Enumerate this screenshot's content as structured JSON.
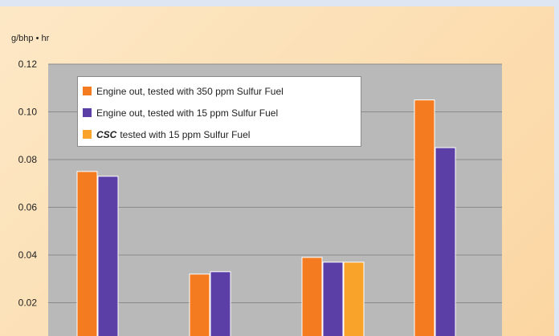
{
  "colors": {
    "background": "#fbdcae",
    "plot_area": "#b9b9b9",
    "grid": "#8a8a8a",
    "series": [
      "#f47b20",
      "#5b3fa6",
      "#f9a32a"
    ]
  },
  "chart_data": {
    "type": "bar",
    "ylabel": "g/bhp • hr",
    "ylim": [
      0,
      0.12
    ],
    "yticks": [
      "0.12",
      "0.10",
      "0.08",
      "0.06",
      "0.04",
      "0.02"
    ],
    "categories": [
      "",
      "",
      "",
      ""
    ],
    "grid": true,
    "legend_position": "top-left",
    "series": [
      {
        "name": "Engine out, tested with 350 ppm Sulfur Fuel",
        "values": [
          0.075,
          0.032,
          0.039,
          0.105
        ]
      },
      {
        "name": "Engine out, tested with 15 ppm Sulfur Fuel",
        "values": [
          0.073,
          0.033,
          0.037,
          0.085
        ]
      },
      {
        "name_prefix": "CSC",
        "name": "tested with 15 ppm Sulfur Fuel",
        "values": [
          0.0,
          0.0,
          0.037,
          0.0
        ]
      }
    ]
  }
}
